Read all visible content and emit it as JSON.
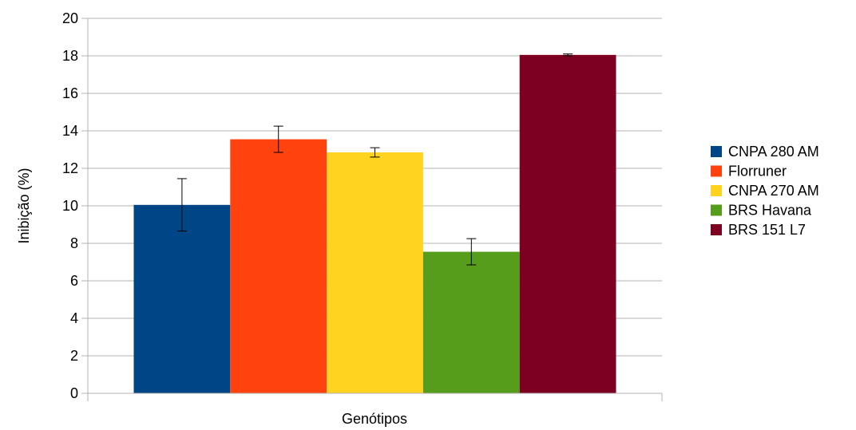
{
  "chart_data": {
    "type": "bar",
    "title": "",
    "xlabel": "Genótipos",
    "ylabel": "Inibição (%)",
    "ylim": [
      0,
      20
    ],
    "yticks": [
      0,
      2,
      4,
      6,
      8,
      10,
      12,
      14,
      16,
      18,
      20
    ],
    "grid": true,
    "legend_position": "right",
    "series": [
      {
        "name": "CNPA 280 AM",
        "value": 10.05,
        "error": 1.4,
        "color": "#004586"
      },
      {
        "name": "Florruner",
        "value": 13.55,
        "error": 0.7,
        "color": "#ff420e"
      },
      {
        "name": "CNPA 270 AM",
        "value": 12.85,
        "error": 0.25,
        "color": "#ffd320"
      },
      {
        "name": "BRS Havana",
        "value": 7.55,
        "error": 0.7,
        "color": "#579d1c"
      },
      {
        "name": "BRS 151 L7",
        "value": 18.05,
        "error": 0.05,
        "color": "#7e0021"
      }
    ]
  }
}
